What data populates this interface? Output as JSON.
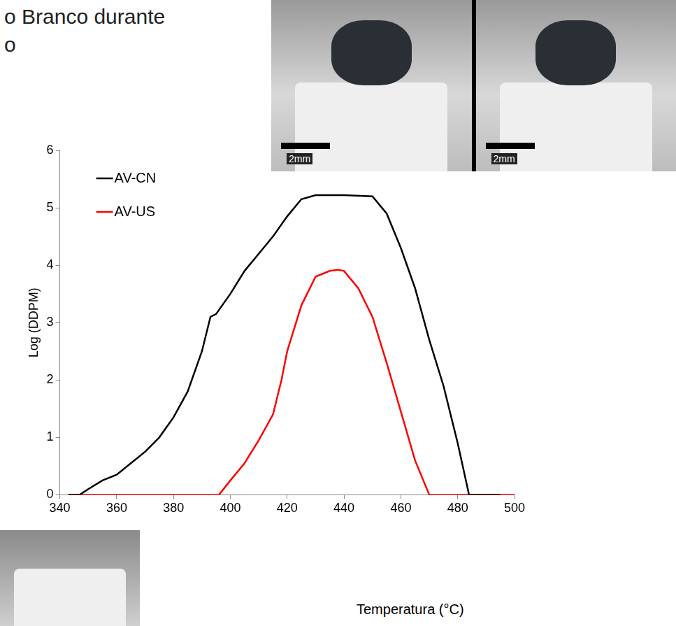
{
  "page": {
    "heading_lines": [
      "o Branco durante",
      "o"
    ],
    "photo_scale_labels": [
      "2mm",
      "2mm"
    ]
  },
  "chart_data": {
    "type": "line",
    "x_label": "Temperatura (°C)",
    "y_label": "Log (DDPM)",
    "xlim": [
      340,
      500
    ],
    "xticks": [
      340,
      360,
      380,
      400,
      420,
      440,
      460,
      480,
      500
    ],
    "ylim": [
      0,
      6
    ],
    "yticks": [
      0,
      1,
      2,
      3,
      4,
      5,
      6
    ],
    "grid": false,
    "legend": "upper left",
    "series": [
      {
        "name": "AV-CN",
        "color": "#000000",
        "x": [
          343,
          347,
          350,
          355,
          360,
          365,
          370,
          375,
          380,
          385,
          390,
          393,
          395,
          400,
          405,
          410,
          415,
          420,
          425,
          430,
          440,
          450,
          455,
          460,
          465,
          470,
          475,
          480,
          484,
          495
        ],
        "values": [
          0,
          0,
          0.1,
          0.25,
          0.35,
          0.55,
          0.75,
          1.0,
          1.35,
          1.8,
          2.5,
          3.1,
          3.15,
          3.5,
          3.9,
          4.2,
          4.5,
          4.85,
          5.15,
          5.22,
          5.22,
          5.2,
          4.9,
          4.3,
          3.6,
          2.7,
          1.9,
          0.9,
          0,
          0
        ]
      },
      {
        "name": "AV-US",
        "color": "#ff0000",
        "x": [
          343,
          396,
          400,
          405,
          410,
          415,
          418,
          420,
          425,
          430,
          435,
          438,
          440,
          445,
          450,
          455,
          460,
          465,
          470,
          478,
          500
        ],
        "values": [
          0,
          0,
          0.25,
          0.55,
          0.95,
          1.4,
          2.0,
          2.5,
          3.3,
          3.8,
          3.9,
          3.92,
          3.9,
          3.6,
          3.1,
          2.3,
          1.45,
          0.6,
          0,
          0,
          0
        ]
      }
    ]
  }
}
